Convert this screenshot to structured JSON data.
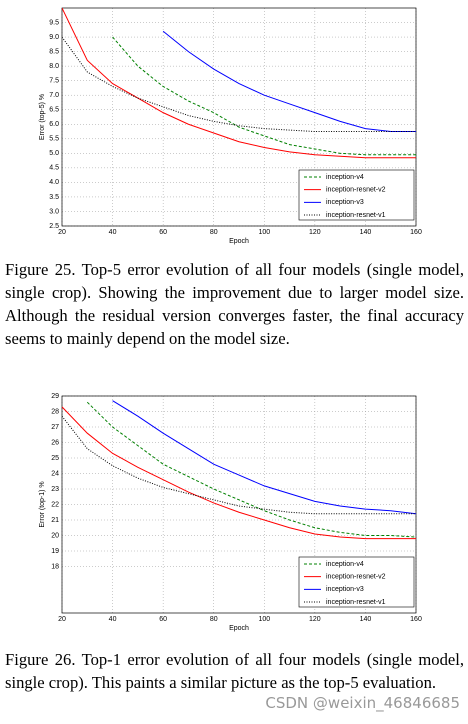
{
  "chart_data": [
    {
      "type": "line",
      "xlabel": "Epoch",
      "ylabel": "Error (top-5) %",
      "x": [
        20,
        30,
        40,
        50,
        60,
        70,
        80,
        90,
        100,
        110,
        120,
        130,
        140,
        150,
        160
      ],
      "xlim": [
        20,
        160
      ],
      "xticks": [
        20,
        40,
        60,
        80,
        100,
        120,
        140,
        160
      ],
      "ylim": [
        2.5,
        10
      ],
      "yticks": [
        2.5,
        {
          "value": 3,
          "label": "3.0"
        },
        3.5,
        {
          "value": 4,
          "label": "4.0"
        },
        4.5,
        {
          "value": 5,
          "label": "5.0"
        },
        5.5,
        {
          "value": 6,
          "label": "6.0"
        },
        6.5,
        {
          "value": 7,
          "label": "7.0"
        },
        7.5,
        {
          "value": 8,
          "label": "8.0"
        },
        8.5,
        {
          "value": 9,
          "label": "9.0"
        },
        9.5
      ],
      "grid": true,
      "legend": "lower right",
      "series": [
        {
          "name": "inception-v4",
          "color": "#008000",
          "linestyle": "dashed",
          "values": [
            null,
            null,
            9.0,
            8.0,
            7.3,
            6.8,
            6.4,
            5.9,
            5.6,
            5.3,
            5.15,
            5.0,
            4.95,
            4.95,
            4.95
          ]
        },
        {
          "name": "inception-resnet-v2",
          "color": "#ff0000",
          "linestyle": "solid",
          "values": [
            10.0,
            8.2,
            7.4,
            6.9,
            6.4,
            6.0,
            5.7,
            5.4,
            5.2,
            5.05,
            4.95,
            4.9,
            4.85,
            4.85,
            4.85
          ]
        },
        {
          "name": "inception-v3",
          "color": "#0000ff",
          "linestyle": "solid",
          "values": [
            null,
            null,
            null,
            null,
            9.2,
            8.5,
            7.9,
            7.4,
            7.0,
            6.7,
            6.4,
            6.1,
            5.85,
            5.75,
            5.75
          ]
        },
        {
          "name": "inception-resnet-v1",
          "color": "#000000",
          "linestyle": "dotted",
          "values": [
            9.0,
            7.8,
            7.3,
            6.9,
            6.6,
            6.3,
            6.1,
            5.95,
            5.85,
            5.8,
            5.75,
            5.75,
            5.75,
            5.75,
            5.75
          ]
        }
      ]
    },
    {
      "type": "line",
      "xlabel": "Epoch",
      "ylabel": "Error (top-1) %",
      "x": [
        20,
        30,
        40,
        50,
        60,
        70,
        80,
        90,
        100,
        110,
        120,
        130,
        140,
        150,
        160
      ],
      "xlim": [
        20,
        160
      ],
      "xticks": [
        20,
        40,
        60,
        80,
        100,
        120,
        140,
        160
      ],
      "ylim": [
        15,
        29
      ],
      "yticks": [
        18,
        19,
        20,
        21,
        22,
        23,
        24,
        25,
        26,
        27,
        28,
        29
      ],
      "grid": true,
      "legend": "lower right",
      "series": [
        {
          "name": "inception-v4",
          "color": "#008000",
          "linestyle": "dashed",
          "values": [
            null,
            28.6,
            27.0,
            25.8,
            24.6,
            23.8,
            23.0,
            22.3,
            21.6,
            21.0,
            20.5,
            20.2,
            20.0,
            20.0,
            19.9
          ]
        },
        {
          "name": "inception-resnet-v2",
          "color": "#ff0000",
          "linestyle": "solid",
          "values": [
            28.3,
            26.6,
            25.3,
            24.4,
            23.6,
            22.8,
            22.1,
            21.5,
            21.0,
            20.5,
            20.1,
            19.9,
            19.8,
            19.8,
            19.8
          ]
        },
        {
          "name": "inception-v3",
          "color": "#0000ff",
          "linestyle": "solid",
          "values": [
            null,
            null,
            28.7,
            27.7,
            26.6,
            25.6,
            24.6,
            23.9,
            23.2,
            22.7,
            22.2,
            21.9,
            21.7,
            21.6,
            21.4
          ]
        },
        {
          "name": "inception-resnet-v1",
          "color": "#000000",
          "linestyle": "dotted",
          "values": [
            27.7,
            25.6,
            24.5,
            23.7,
            23.1,
            22.7,
            22.3,
            21.9,
            21.7,
            21.5,
            21.4,
            21.4,
            21.4,
            21.4,
            21.4
          ]
        }
      ]
    }
  ],
  "captions": [
    "Figure 25. Top-5 error evolution of all four models (single model, single crop). Showing the improvement due to larger model size. Although the residual version converges faster, the final accuracy seems to mainly depend on the model size.",
    "Figure 26. Top-1 error evolution of all four models (single model, single crop). This paints a similar picture as the top-5 evaluation."
  ],
  "watermark": "CSDN @weixin_46846685"
}
